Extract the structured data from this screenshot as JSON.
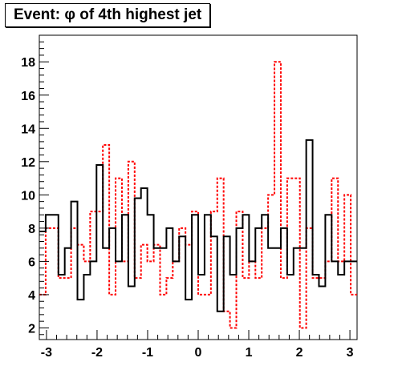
{
  "chart_data": {
    "type": "histogram",
    "title": "Event: φ of 4th highest jet",
    "xlim": [
      -3.1416,
      3.1416
    ],
    "ylim": [
      1.3,
      19.6
    ],
    "x_ticks": [
      -3,
      -2,
      -1,
      0,
      1,
      2,
      3
    ],
    "y_ticks": [
      2,
      4,
      6,
      8,
      10,
      12,
      14,
      16,
      18
    ],
    "bins": 50,
    "series": [
      {
        "style": "solid",
        "color": "#000000",
        "values": [
          7.8,
          8.8,
          8.8,
          5.2,
          6.8,
          9.6,
          3.7,
          5.2,
          6.0,
          11.8,
          6.8,
          8.0,
          6.0,
          8.8,
          4.5,
          9.8,
          10.4,
          8.8,
          6.8,
          6.8,
          8.0,
          6.0,
          7.5,
          3.7,
          8.8,
          5.2,
          8.8,
          7.5,
          3.0,
          7.5,
          5.2,
          8.0,
          8.8,
          6.0,
          8.0,
          8.8,
          6.8,
          6.8,
          8.0,
          5.2,
          6.8,
          6.8,
          13.3,
          5.2,
          4.5,
          8.8,
          6.0,
          5.2,
          6.0,
          6.0
        ]
      },
      {
        "style": "dashed",
        "color": "#ff0000",
        "values": [
          4.0,
          8.0,
          8.0,
          5.0,
          5.0,
          8.0,
          7.0,
          6.0,
          9.0,
          9.0,
          13.0,
          4.0,
          11.0,
          6.0,
          12.0,
          5.0,
          7.0,
          6.0,
          7.0,
          4.0,
          5.0,
          6.0,
          8.0,
          7.0,
          9.0,
          4.0,
          4.0,
          9.0,
          11.0,
          3.0,
          2.0,
          9.0,
          5.0,
          6.0,
          5.0,
          8.0,
          10.0,
          18.0,
          5.0,
          11.0,
          11.0,
          2.0,
          8.0,
          5.0,
          5.0,
          6.0,
          11.0,
          6.0,
          10.0,
          4.0
        ]
      }
    ]
  }
}
